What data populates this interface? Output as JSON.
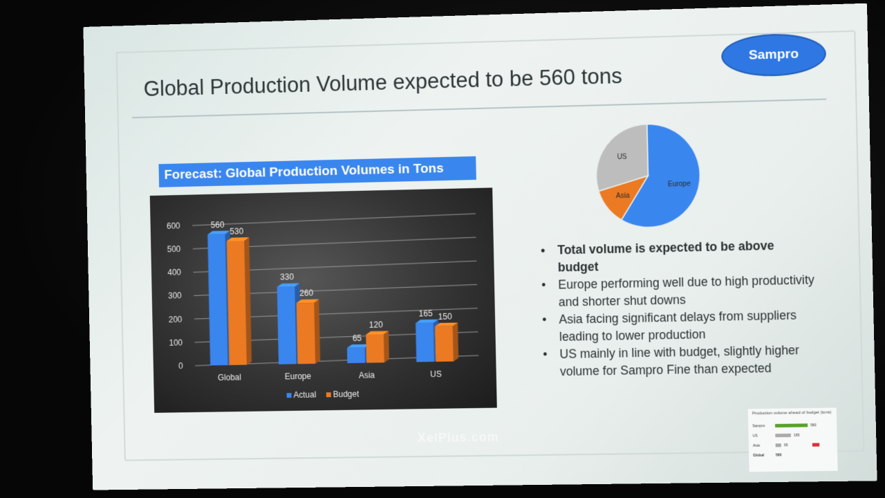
{
  "slide": {
    "title": "Global Production Volume expected to be 560 tons",
    "brand": "Sampro",
    "forecast_title": "Forecast: Global Production Volumes in Tons",
    "watermark": "XelPlus.com"
  },
  "bullets": [
    "Total volume is expected to be above budget",
    "Europe performing well due to high productivity and shorter shut downs",
    "Asia facing significant delays from suppliers leading to lower production",
    "US mainly in line with budget, slightly higher volume for Sampro Fine than expected"
  ],
  "thumbnail": {
    "title": "Production volume ahead of budget (tons)",
    "rows": [
      "Sampro",
      "US",
      "Asia",
      "Global"
    ],
    "values": [
      "560",
      "165",
      "65",
      "560"
    ]
  },
  "chart_data": [
    {
      "type": "bar",
      "categories": [
        "Global",
        "Europe",
        "Asia",
        "US"
      ],
      "series": [
        {
          "name": "Actual",
          "values": [
            560,
            330,
            65,
            165
          ],
          "color": "#3a86ef"
        },
        {
          "name": "Budget",
          "values": [
            530,
            260,
            120,
            150
          ],
          "color": "#ec7a22"
        }
      ],
      "ylim": [
        0,
        600
      ],
      "yticks": [
        "0",
        "100",
        "200",
        "300",
        "400",
        "500",
        "600"
      ],
      "grid": true,
      "legend": "bottom",
      "background": "#333333"
    },
    {
      "type": "pie",
      "slices": [
        {
          "label": "Europe",
          "value": 330,
          "color": "#3a86ef"
        },
        {
          "label": "Asia",
          "value": 65,
          "color": "#ec7a22"
        },
        {
          "label": "US",
          "value": 165,
          "color": "#bdbdbd"
        }
      ]
    }
  ]
}
